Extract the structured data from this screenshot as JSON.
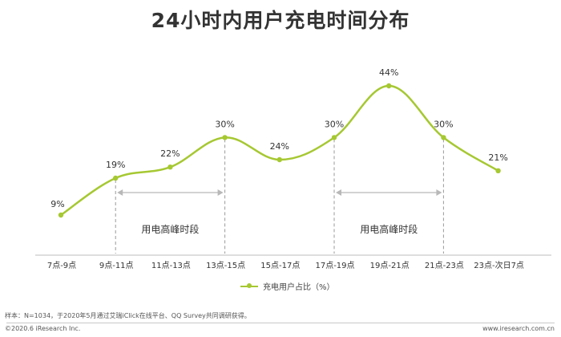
{
  "title": "24小时内用户充电时间分布",
  "chart_data": {
    "type": "line",
    "categories": [
      "7点-9点",
      "9点-11点",
      "11点-13点",
      "13点-15点",
      "15点-17点",
      "17点-19点",
      "19点-21点",
      "21点-23点",
      "23点-次日7点"
    ],
    "series": [
      {
        "name": "充电用户占比（%）",
        "values": [
          9,
          19,
          22,
          30,
          24,
          30,
          44,
          30,
          21
        ],
        "color": "#a6c832"
      }
    ],
    "data_labels": [
      "9%",
      "19%",
      "22%",
      "30%",
      "24%",
      "30%",
      "44%",
      "30%",
      "21%"
    ],
    "peak_periods": [
      {
        "label": "用电高峰时段",
        "from_category": "9点-11点",
        "to_category": "13点-15点"
      },
      {
        "label": "用电高峰时段",
        "from_category": "17点-19点",
        "to_category": "21点-23点"
      }
    ],
    "legend_position": "bottom",
    "grid": false
  },
  "legend": {
    "label": "充电用户占比（%）"
  },
  "footer": {
    "note": "样本：N=1034，于2020年5月通过艾瑞iClick在线平台、QQ Survey共同调研获得。",
    "copyright": "©2020.6 iResearch Inc.",
    "website": "www.iresearch.com.cn"
  },
  "colors": {
    "series": "#a6c832",
    "dashed": "#9a9a9a",
    "arrow": "#b8b8b8",
    "text": "#333333"
  }
}
